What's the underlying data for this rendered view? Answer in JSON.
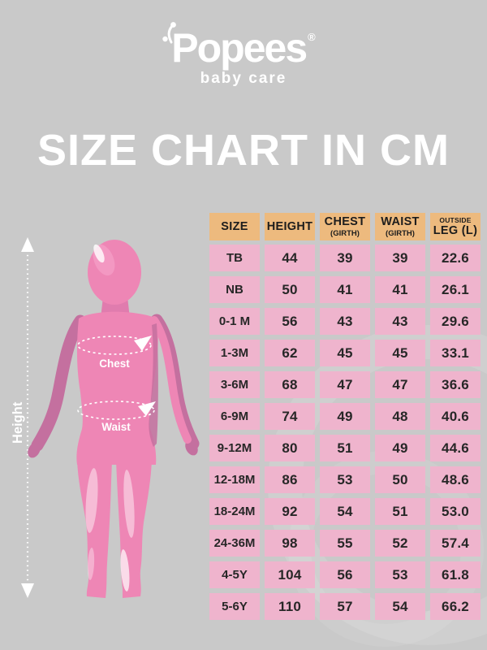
{
  "page": {
    "background_color": "#c9c9c9"
  },
  "logo": {
    "brand": "Popees",
    "registered_mark": "®",
    "tagline": "baby care"
  },
  "title": "SIZE CHART IN CM",
  "figure": {
    "height_label": "Height",
    "chest_label": "Chest",
    "waist_label": "Waist",
    "skin_color": "#ee86b5",
    "shadow_color": "#c4709f"
  },
  "table": {
    "colors": {
      "header_bg": "#edba7e",
      "cell_bg": "#efb4cd",
      "text": "#1d1d1d"
    },
    "columns": [
      {
        "sup": "",
        "main": "SIZE",
        "sub": ""
      },
      {
        "sup": "",
        "main": "HEIGHT",
        "sub": ""
      },
      {
        "sup": "",
        "main": "CHEST",
        "sub": "(GIRTH)"
      },
      {
        "sup": "",
        "main": "WAIST",
        "sub": "(GIRTH)"
      },
      {
        "sup": "OUTSIDE",
        "main": "LEG (L)",
        "sub": ""
      }
    ],
    "rows": [
      [
        "TB",
        "44",
        "39",
        "39",
        "22.6"
      ],
      [
        "NB",
        "50",
        "41",
        "41",
        "26.1"
      ],
      [
        "0-1 M",
        "56",
        "43",
        "43",
        "29.6"
      ],
      [
        "1-3M",
        "62",
        "45",
        "45",
        "33.1"
      ],
      [
        "3-6M",
        "68",
        "47",
        "47",
        "36.6"
      ],
      [
        "6-9M",
        "74",
        "49",
        "48",
        "40.6"
      ],
      [
        "9-12M",
        "80",
        "51",
        "49",
        "44.6"
      ],
      [
        "12-18M",
        "86",
        "53",
        "50",
        "48.6"
      ],
      [
        "18-24M",
        "92",
        "54",
        "51",
        "53.0"
      ],
      [
        "24-36M",
        "98",
        "55",
        "52",
        "57.4"
      ],
      [
        "4-5Y",
        "104",
        "56",
        "53",
        "61.8"
      ],
      [
        "5-6Y",
        "110",
        "57",
        "54",
        "66.2"
      ]
    ]
  },
  "chart_data": {
    "type": "table",
    "title": "SIZE CHART IN CM",
    "units": "cm",
    "columns": [
      "SIZE",
      "HEIGHT",
      "CHEST (GIRTH)",
      "WAIST (GIRTH)",
      "OUTSIDE LEG (L)"
    ],
    "rows": [
      [
        "TB",
        44,
        39,
        39,
        22.6
      ],
      [
        "NB",
        50,
        41,
        41,
        26.1
      ],
      [
        "0-1 M",
        56,
        43,
        43,
        29.6
      ],
      [
        "1-3M",
        62,
        45,
        45,
        33.1
      ],
      [
        "3-6M",
        68,
        47,
        47,
        36.6
      ],
      [
        "6-9M",
        74,
        49,
        48,
        40.6
      ],
      [
        "9-12M",
        80,
        51,
        49,
        44.6
      ],
      [
        "12-18M",
        86,
        53,
        50,
        48.6
      ],
      [
        "18-24M",
        92,
        54,
        51,
        53.0
      ],
      [
        "24-36M",
        98,
        55,
        52,
        57.4
      ],
      [
        "4-5Y",
        104,
        56,
        53,
        61.8
      ],
      [
        "5-6Y",
        110,
        57,
        54,
        66.2
      ]
    ]
  }
}
